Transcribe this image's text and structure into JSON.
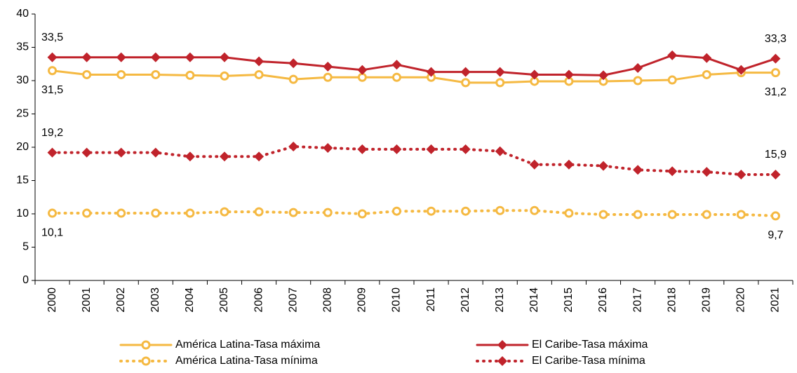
{
  "chart_data": {
    "type": "line",
    "categories": [
      "2000",
      "2001",
      "2002",
      "2003",
      "2004",
      "2005",
      "2006",
      "2007",
      "2008",
      "2009",
      "2010",
      "2011",
      "2012",
      "2013",
      "2014",
      "2015",
      "2016",
      "2017",
      "2018",
      "2019",
      "2020",
      "2021"
    ],
    "ylim": [
      0,
      40
    ],
    "yticks": [
      0,
      5,
      10,
      15,
      20,
      25,
      30,
      35,
      40
    ],
    "series": [
      {
        "name": "América Latina-Tasa máxima",
        "color": "#f5b942",
        "dashed": false,
        "marker": "circle",
        "label_position": "below",
        "values": [
          31.5,
          30.9,
          30.9,
          30.9,
          30.8,
          30.7,
          30.9,
          30.2,
          30.5,
          30.5,
          30.5,
          30.5,
          29.7,
          29.7,
          29.9,
          29.9,
          29.9,
          30.0,
          30.1,
          30.9,
          31.2,
          31.2
        ],
        "value_labels": [
          "31,5",
          null,
          null,
          null,
          null,
          null,
          null,
          null,
          null,
          null,
          null,
          null,
          null,
          null,
          null,
          null,
          null,
          null,
          null,
          null,
          null,
          "31,2"
        ]
      },
      {
        "name": "El Caribe-Tasa máxima",
        "color": "#c0232b",
        "dashed": false,
        "marker": "diamond",
        "label_position": "above",
        "values": [
          33.5,
          33.5,
          33.5,
          33.5,
          33.5,
          33.5,
          32.9,
          32.6,
          32.1,
          31.6,
          32.4,
          31.3,
          31.3,
          31.3,
          30.9,
          30.9,
          30.8,
          31.9,
          33.8,
          33.4,
          31.6,
          33.3
        ],
        "value_labels": [
          "33,5",
          null,
          null,
          null,
          null,
          null,
          null,
          null,
          null,
          null,
          null,
          null,
          null,
          null,
          null,
          null,
          null,
          null,
          null,
          null,
          null,
          "33,3"
        ]
      },
      {
        "name": "América Latina-Tasa mínima",
        "color": "#f5b942",
        "dashed": true,
        "marker": "circle",
        "label_position": "below",
        "values": [
          10.1,
          10.1,
          10.1,
          10.1,
          10.1,
          10.3,
          10.3,
          10.2,
          10.2,
          10.0,
          10.4,
          10.4,
          10.4,
          10.5,
          10.5,
          10.1,
          9.9,
          9.9,
          9.9,
          9.9,
          9.9,
          9.7
        ],
        "value_labels": [
          "10,1",
          null,
          null,
          null,
          null,
          null,
          null,
          null,
          null,
          null,
          null,
          null,
          null,
          null,
          null,
          null,
          null,
          null,
          null,
          null,
          null,
          "9,7"
        ]
      },
      {
        "name": "El Caribe-Tasa mínima",
        "color": "#c0232b",
        "dashed": true,
        "marker": "diamond",
        "label_position": "above",
        "values": [
          19.2,
          19.2,
          19.2,
          19.2,
          18.6,
          18.6,
          18.6,
          20.1,
          19.9,
          19.7,
          19.7,
          19.7,
          19.7,
          19.4,
          17.4,
          17.4,
          17.2,
          16.6,
          16.4,
          16.3,
          15.9,
          15.9
        ],
        "value_labels": [
          "19,2",
          null,
          null,
          null,
          null,
          null,
          null,
          null,
          null,
          null,
          null,
          null,
          null,
          null,
          null,
          null,
          null,
          null,
          null,
          null,
          null,
          "15,9"
        ]
      }
    ]
  }
}
